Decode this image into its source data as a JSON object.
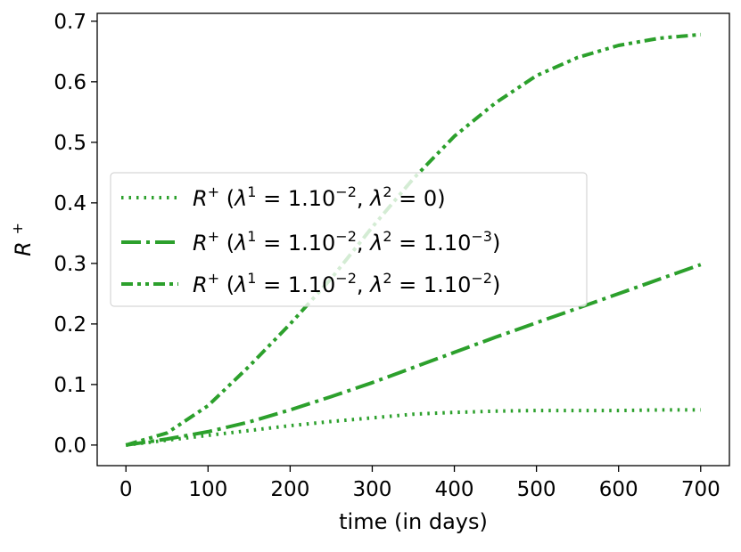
{
  "chart_data": {
    "type": "line",
    "xlabel": "time (in days)",
    "ylabel": "R",
    "ylabel_sup": "+",
    "xlim": [
      -35,
      735
    ],
    "ylim": [
      -0.034,
      0.713
    ],
    "xticks": [
      0,
      100,
      200,
      300,
      400,
      500,
      600,
      700
    ],
    "xtick_labels": [
      "0",
      "100",
      "200",
      "300",
      "400",
      "500",
      "600",
      "700"
    ],
    "yticks": [
      0.0,
      0.1,
      0.2,
      0.3,
      0.4,
      0.5,
      0.6,
      0.7
    ],
    "ytick_labels": [
      "0.0",
      "0.1",
      "0.2",
      "0.3",
      "0.4",
      "0.5",
      "0.6",
      "0.7"
    ],
    "grid": false,
    "legend_position": "center-left",
    "color": "#2ca02c",
    "x": [
      0,
      50,
      100,
      150,
      200,
      250,
      300,
      350,
      400,
      450,
      500,
      550,
      600,
      650,
      700
    ],
    "series": [
      {
        "name": "R+ (λ1=1.10−2, λ2=0)",
        "legend": {
          "base": "R",
          "base_sup": "+",
          "open": " (",
          "l1": "λ",
          "l1_sup": "1",
          "eq1": " = 1.10",
          "e1_sup": "−2",
          "comma": ", ",
          "l2": "λ",
          "l2_sup": "2",
          "eq2": " = 0",
          "e2_sup": "",
          "close": ")"
        },
        "style": "dotted",
        "values": [
          0.0,
          0.008,
          0.016,
          0.024,
          0.032,
          0.039,
          0.045,
          0.051,
          0.054,
          0.056,
          0.057,
          0.057,
          0.057,
          0.058,
          0.058
        ]
      },
      {
        "name": "R+ (λ1=1.10−2, λ2=1.10−3)",
        "legend": {
          "base": "R",
          "base_sup": "+",
          "open": " (",
          "l1": "λ",
          "l1_sup": "1",
          "eq1": " = 1.10",
          "e1_sup": "−2",
          "comma": ", ",
          "l2": "λ",
          "l2_sup": "2",
          "eq2": " = 1.10",
          "e2_sup": "−3",
          "close": ")"
        },
        "style": "dashdot",
        "values": [
          0.0,
          0.01,
          0.022,
          0.038,
          0.058,
          0.08,
          0.103,
          0.128,
          0.153,
          0.178,
          0.202,
          0.226,
          0.25,
          0.274,
          0.298
        ]
      },
      {
        "name": "R+ (λ1=1.10−2, λ2=1.10−2)",
        "legend": {
          "base": "R",
          "base_sup": "+",
          "open": " (",
          "l1": "λ",
          "l1_sup": "1",
          "eq1": " = 1.10",
          "e1_sup": "−2",
          "comma": ", ",
          "l2": "λ",
          "l2_sup": "2",
          "eq2": " = 1.10",
          "e2_sup": "−2",
          "close": ")"
        },
        "style": "dashdotdot",
        "values": [
          0.0,
          0.02,
          0.065,
          0.13,
          0.2,
          0.275,
          0.36,
          0.44,
          0.51,
          0.565,
          0.61,
          0.64,
          0.66,
          0.672,
          0.678
        ]
      }
    ]
  }
}
